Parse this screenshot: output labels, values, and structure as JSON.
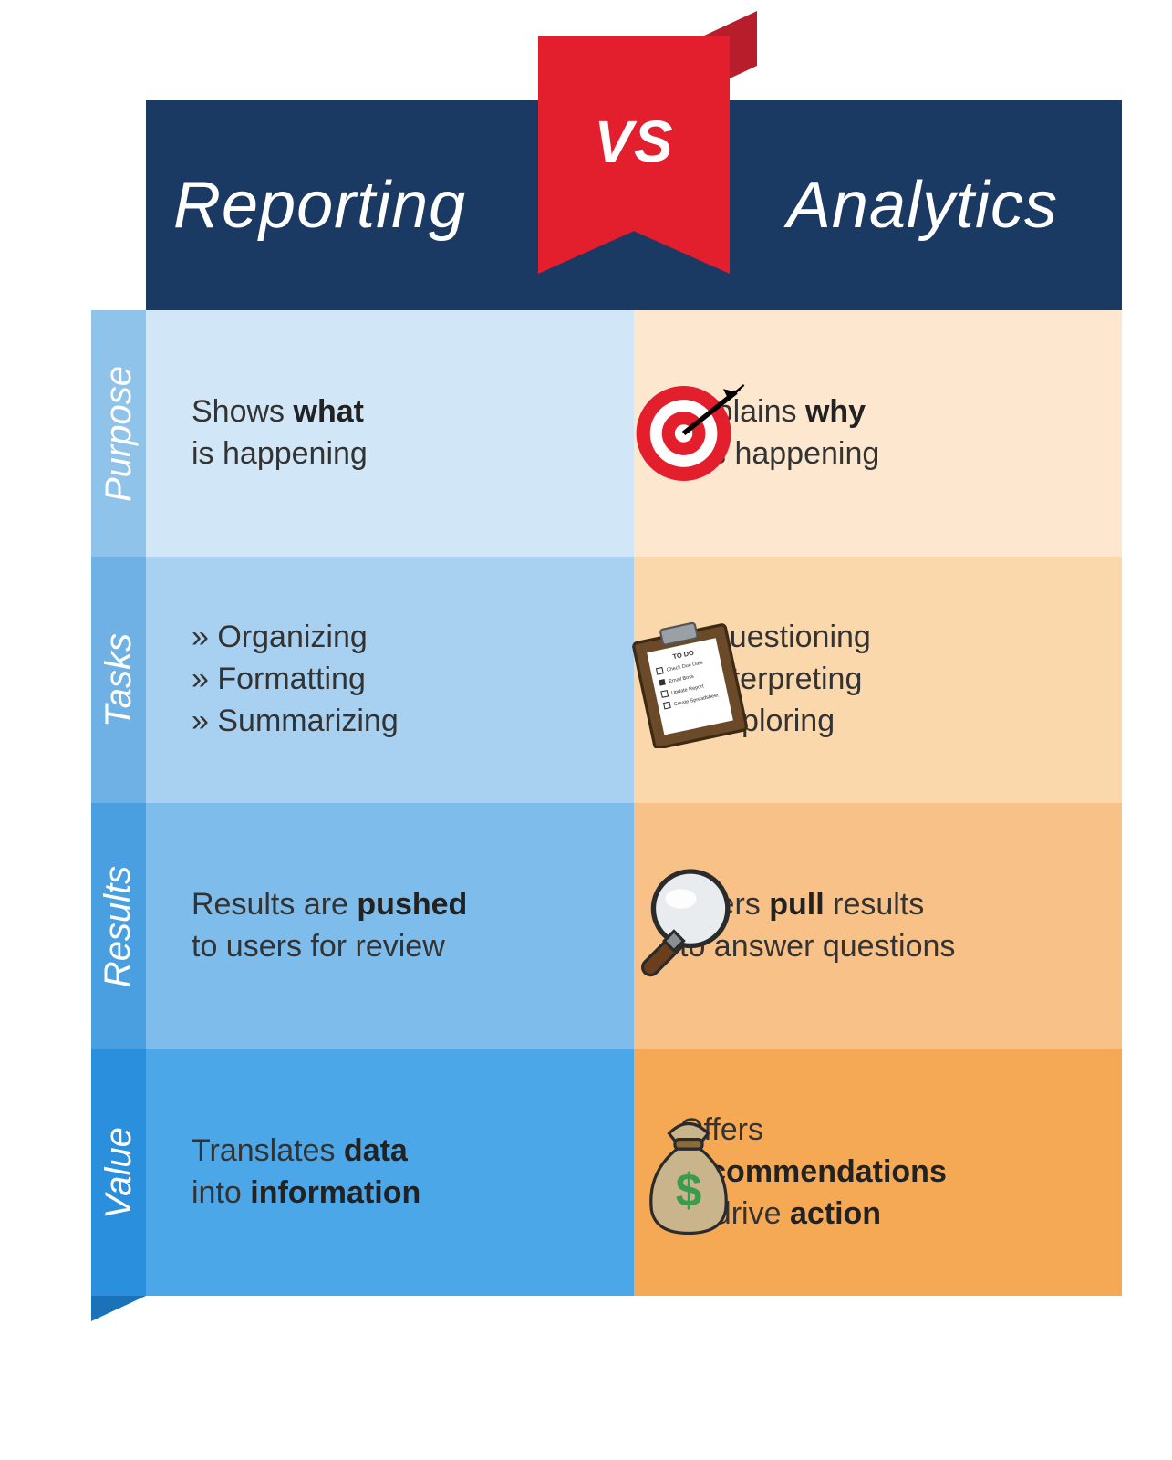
{
  "header": {
    "left": "Reporting",
    "vs": "VS",
    "right": "Analytics",
    "bg": "#1b3a63",
    "ribbon_front": "#e31e2d",
    "ribbon_back": "#b81d2c",
    "text_color": "#ffffff"
  },
  "rows": [
    {
      "label": "Purpose",
      "tab_color": "#8fc3ea",
      "tab_fold": "#6fa9d6",
      "left_bg": "#d1e7f7",
      "right_bg": "#fde8cf",
      "left_html": "Shows <strong>what</strong><br>is happening",
      "right_html": "Explains <strong>why</strong><br>it is happening",
      "icon": "target"
    },
    {
      "label": "Tasks",
      "tab_color": "#6fb1e4",
      "tab_fold": "#4f96cf",
      "left_bg": "#a8d1f1",
      "right_bg": "#fbd7ac",
      "left_html": "<span class='bullet'>» Organizing</span><span class='bullet'>» Formatting</span><span class='bullet'>» Summarizing</span>",
      "right_html": "<span class='bullet'>» Questioning</span><span class='bullet'>» Interpreting</span><span class='bullet'>» Exploring</span>",
      "icon": "clipboard"
    },
    {
      "label": "Results",
      "tab_color": "#4a9fe0",
      "tab_fold": "#2f85c9",
      "left_bg": "#7dbceb",
      "right_bg": "#f8c187",
      "left_html": "Results are <strong>pushed</strong><br>to users for review",
      "right_html": "Users <strong>pull</strong> results<br>to answer questions",
      "icon": "magnifier"
    },
    {
      "label": "Value",
      "tab_color": "#2a8fdd",
      "tab_fold": "#1a72b8",
      "left_bg": "#4ba7e8",
      "right_bg": "#f5a955",
      "left_html": "Translates <strong>data</strong><br>into <strong>information</strong>",
      "right_html": "Offers<br><strong>recommendations</strong><br>to drive <strong>action</strong>",
      "icon": "moneybag"
    }
  ],
  "style": {
    "body_font_color": "#333333",
    "body_font_size": 34,
    "tab_font_size": 40,
    "header_font_size": 72
  }
}
